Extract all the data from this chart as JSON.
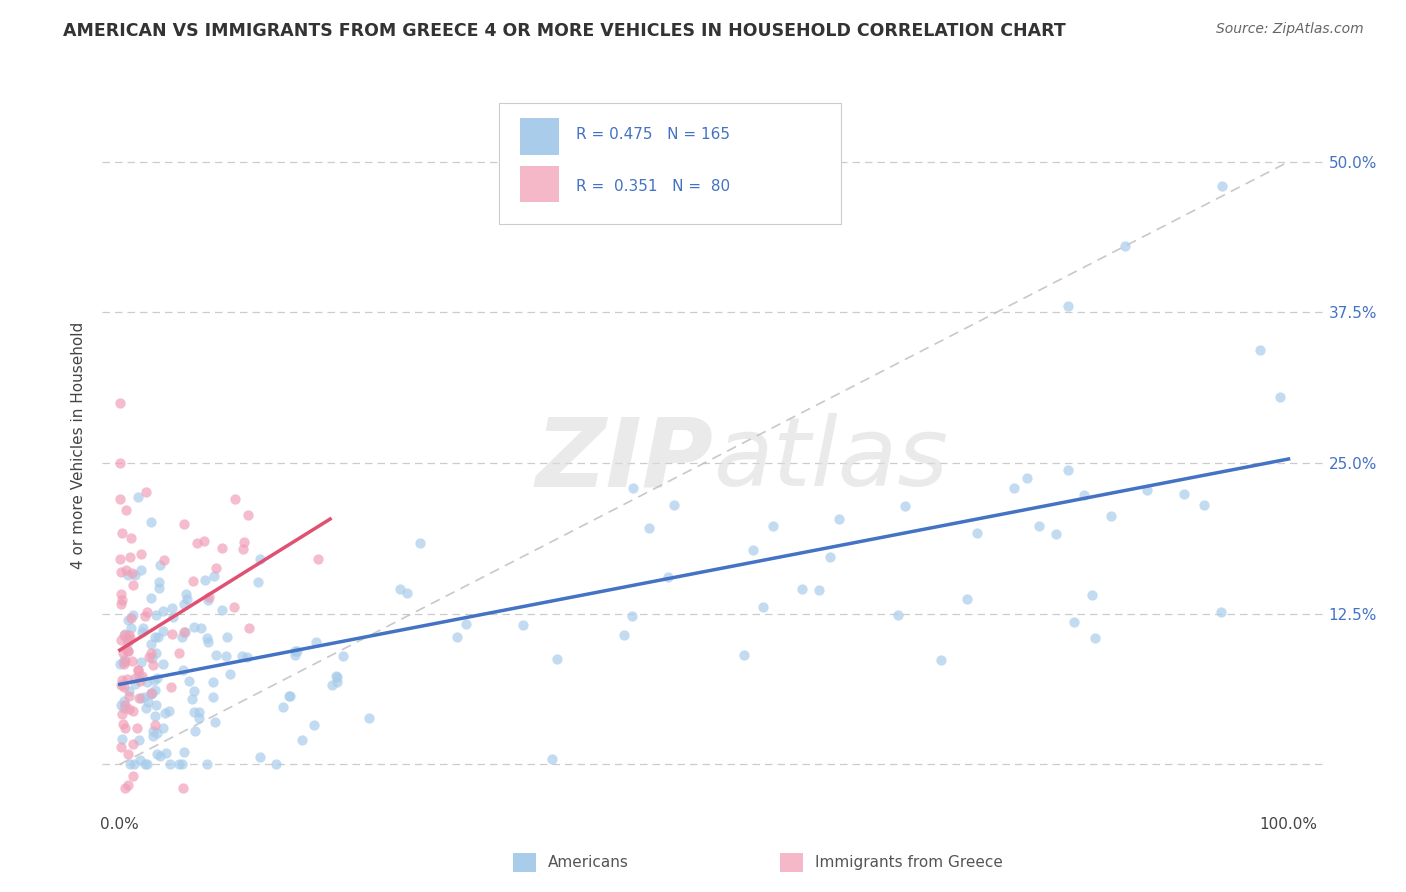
{
  "title": "AMERICAN VS IMMIGRANTS FROM GREECE 4 OR MORE VEHICLES IN HOUSEHOLD CORRELATION CHART",
  "source": "Source: ZipAtlas.com",
  "ylabel": "4 or more Vehicles in Household",
  "color_american": "#A8CCEA",
  "color_greece": "#F0A0B8",
  "line_color_american": "#4472C4",
  "line_color_greece": "#E05070",
  "background_color": "#FFFFFF",
  "legend_box_american_color": "#A8CCEA",
  "legend_box_greece_color": "#F4B8C8",
  "ytick_color": "#4472C4",
  "r_american": 0.475,
  "n_american": 165,
  "r_greece": 0.351,
  "n_greece": 80,
  "diag_line_color": "#BBBBBB",
  "grid_color": "#CCCCCC"
}
